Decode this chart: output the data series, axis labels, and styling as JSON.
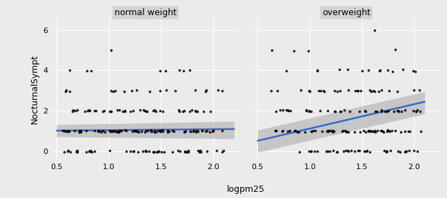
{
  "panel_titles": [
    "normal weight",
    "overweight"
  ],
  "xlabel": "logpm25",
  "ylabel": "NocturnalSympt",
  "xlim": [
    0.45,
    2.25
  ],
  "ylim": [
    -0.45,
    6.6
  ],
  "yticks": [
    0,
    2,
    4,
    6
  ],
  "xticks": [
    0.5,
    1.0,
    1.5,
    2.0
  ],
  "background_color": "#EBEBEB",
  "panel_title_bg": "#D3D3D3",
  "grid_color": "#FFFFFF",
  "dot_color": "#000000",
  "dot_size": 7,
  "dot_alpha": 0.85,
  "line_color": "#3366CC",
  "line_width": 1.8,
  "ci_color": "#999999",
  "ci_alpha": 0.45,
  "nw_line_x": [
    0.5,
    2.2
  ],
  "nw_line_y": [
    1.02,
    1.1
  ],
  "nw_ci_upper": [
    1.32,
    1.48
  ],
  "nw_ci_lower": [
    0.72,
    0.62
  ],
  "ow_line_x": [
    0.5,
    2.1
  ],
  "ow_line_y": [
    0.52,
    2.45
  ],
  "ow_ci_upper": [
    1.05,
    2.95
  ],
  "ow_ci_lower": [
    -0.05,
    1.85
  ]
}
